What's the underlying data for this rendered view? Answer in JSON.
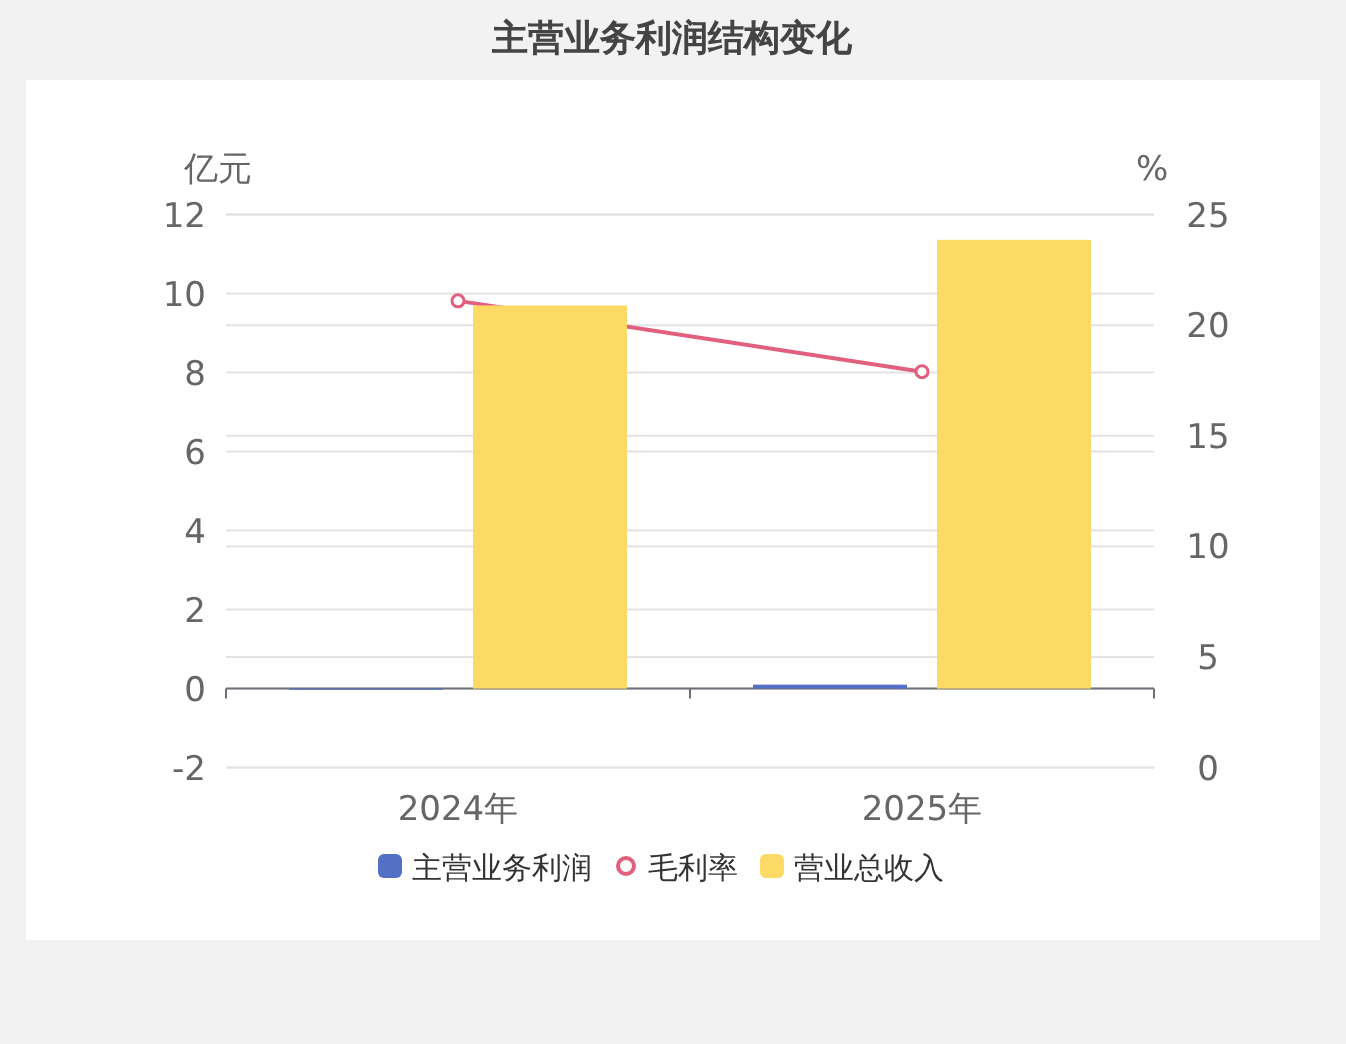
{
  "chart_data": {
    "type": "bar",
    "title": "主营业务利润结构变化",
    "ylabel": "亿元",
    "y2label": "%",
    "categories": [
      "2024年",
      "2025年"
    ],
    "series": [
      {
        "name": "主营业务利润",
        "color": "#5470c6",
        "values": [
          -0.03,
          0.1
        ]
      },
      {
        "name": "毛利率",
        "type": "line",
        "axis": "y2",
        "color": "#e0607e",
        "marker": "circle",
        "values": [
          21.1,
          17.9
        ]
      },
      {
        "name": "营业总收入",
        "color": "#fdd966",
        "values": [
          9.7,
          11.36
        ]
      }
    ],
    "ylim": [
      -2,
      12
    ],
    "yticks": [
      -2,
      0,
      2,
      4,
      6,
      8,
      10,
      12
    ],
    "y2lim": [
      0,
      25
    ],
    "y2ticks": [
      0,
      5,
      10,
      15,
      20,
      25
    ],
    "grid": true,
    "legend": "bottom"
  }
}
